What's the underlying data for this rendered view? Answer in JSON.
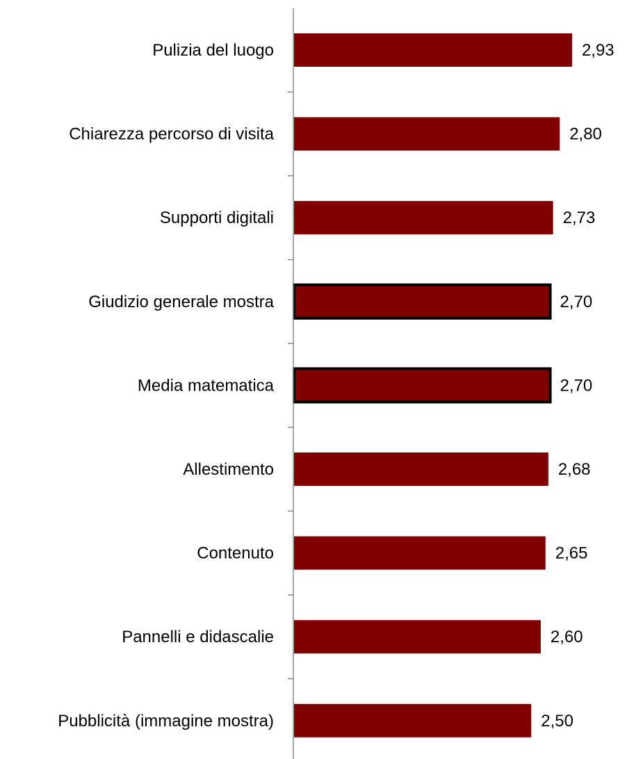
{
  "chart_data": {
    "type": "bar",
    "orientation": "horizontal",
    "categories": [
      "Pulizia del luogo",
      "Chiarezza percorso di visita",
      "Supporti digitali",
      "Giudizio generale mostra",
      "Media matematica",
      "Allestimento",
      "Contenuto",
      "Pannelli e didascalie",
      "Pubblicità (immagine mostra)"
    ],
    "values": [
      2.93,
      2.8,
      2.73,
      2.7,
      2.7,
      2.68,
      2.65,
      2.6,
      2.5
    ],
    "value_labels": [
      "2,93",
      "2,80",
      "2,73",
      "2,70",
      "2,70",
      "2,68",
      "2,65",
      "2,60",
      "2,50"
    ],
    "highlighted": [
      false,
      false,
      false,
      true,
      true,
      false,
      false,
      false,
      false
    ],
    "title": "",
    "xlabel": "",
    "ylabel": "",
    "xlim": [
      0,
      2.93
    ],
    "grid": false,
    "legend": "none",
    "colors": {
      "bar": "#800000",
      "bar_outline": "#000000",
      "axis": "#888888",
      "text": "#000000"
    }
  }
}
